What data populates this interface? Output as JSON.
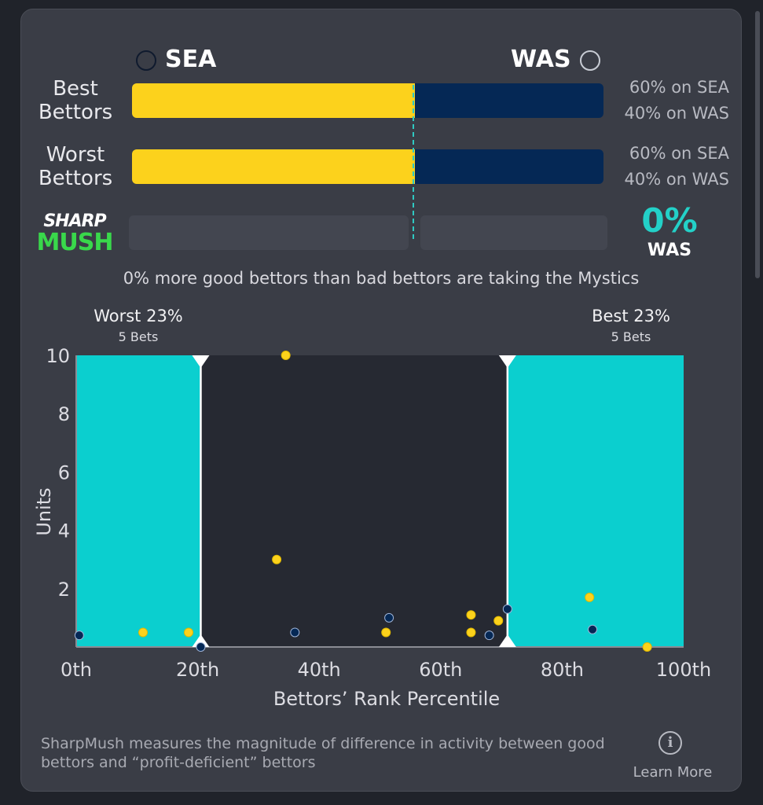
{
  "teams": {
    "home": {
      "abbr": "SEA",
      "color": "#fcd21c"
    },
    "away": {
      "abbr": "WAS",
      "color": "#052855"
    }
  },
  "rows": [
    {
      "label_line1": "Best",
      "label_line2": "Bettors",
      "sea_pct": 60,
      "sea_text": "60% on SEA",
      "was_text": "40% on WAS"
    },
    {
      "label_line1": "Worst",
      "label_line2": "Bettors",
      "sea_pct": 60,
      "sea_text": "60% on SEA",
      "was_text": "40% on WAS"
    }
  ],
  "logo": {
    "line1": "SHARP",
    "line2": "MUSH"
  },
  "sharpmush": {
    "value": "0%",
    "team": "WAS",
    "summary": "0% more good bettors than bad bettors are taking the Mystics"
  },
  "groups": {
    "worst": {
      "title": "Worst 23%",
      "sub": "5 Bets"
    },
    "best": {
      "title": "Best 23%",
      "sub": "5 Bets"
    }
  },
  "chart_data": {
    "type": "scatter",
    "xlabel": "Bettors’ Rank Percentile",
    "ylabel": "Units",
    "xlim": [
      0,
      100
    ],
    "ylim": [
      0,
      10
    ],
    "x_ticks": [
      {
        "v": 0,
        "label": "0th"
      },
      {
        "v": 20,
        "label": "20th"
      },
      {
        "v": 40,
        "label": "40th"
      },
      {
        "v": 60,
        "label": "60th"
      },
      {
        "v": 80,
        "label": "80th"
      },
      {
        "v": 100,
        "label": "100th"
      }
    ],
    "y_ticks": [
      {
        "v": 2,
        "label": "2"
      },
      {
        "v": 4,
        "label": "4"
      },
      {
        "v": 6,
        "label": "6"
      },
      {
        "v": 8,
        "label": "8"
      },
      {
        "v": 10,
        "label": "10"
      }
    ],
    "highlight_ranges": [
      [
        0,
        20.5
      ],
      [
        71,
        100
      ]
    ],
    "grid": false,
    "series": [
      {
        "team": "SEA",
        "color": "#fcd21c",
        "points": [
          [
            11,
            0.5
          ],
          [
            18.5,
            0.5
          ],
          [
            33,
            3.0
          ],
          [
            34.5,
            10.0
          ],
          [
            51,
            0.5
          ],
          [
            65,
            0.5
          ],
          [
            65,
            1.1
          ],
          [
            69.5,
            0.9
          ],
          [
            84.5,
            1.7
          ],
          [
            94,
            0.0
          ]
        ]
      },
      {
        "team": "WAS",
        "color": "#052855",
        "points": [
          [
            0.5,
            0.4
          ],
          [
            20.5,
            0.0
          ],
          [
            36,
            0.5
          ],
          [
            51.5,
            1.0
          ],
          [
            68,
            0.4
          ],
          [
            71,
            1.3
          ],
          [
            85,
            0.6
          ]
        ]
      }
    ]
  },
  "footer": {
    "text": "SharpMush measures the magnitude of difference in activity between good bettors and “profit-deficient” bettors",
    "learn_more": "Learn More",
    "info_icon": "info-icon"
  }
}
